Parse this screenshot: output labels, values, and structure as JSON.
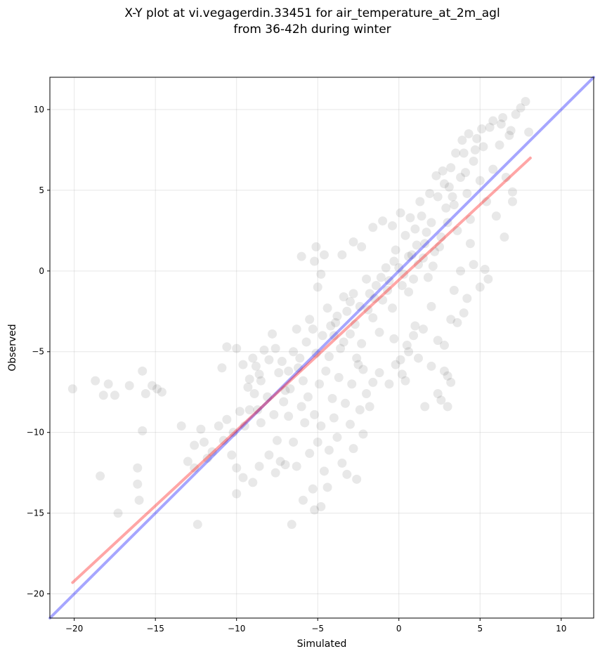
{
  "chart_data": {
    "type": "scatter",
    "title": "X-Y plot at vi.vegagerdin.33451 for air_temperature_at_2m_agl",
    "subtitle": "from 36-42h during winter",
    "xlabel": "Simulated",
    "ylabel": "Observed",
    "xlim": [
      -21.5,
      12
    ],
    "ylim": [
      -21.5,
      12
    ],
    "xticks": [
      -20,
      -15,
      -10,
      -5,
      0,
      5,
      10
    ],
    "yticks": [
      -20,
      -15,
      -10,
      -5,
      0,
      5,
      10
    ],
    "grid": true,
    "point_color": "#000000",
    "points": [
      [
        -20.1,
        -7.3
      ],
      [
        -18.7,
        -6.8
      ],
      [
        -18.2,
        -7.7
      ],
      [
        -17.9,
        -7.0
      ],
      [
        -17.5,
        -7.7
      ],
      [
        -16.6,
        -7.1
      ],
      [
        -15.8,
        -6.2
      ],
      [
        -15.6,
        -7.6
      ],
      [
        -15.2,
        -7.1
      ],
      [
        -14.9,
        -7.3
      ],
      [
        -14.6,
        -7.5
      ],
      [
        -15.8,
        -9.9
      ],
      [
        -18.4,
        -12.7
      ],
      [
        -16.1,
        -12.2
      ],
      [
        -16.1,
        -13.2
      ],
      [
        -16.0,
        -14.2
      ],
      [
        -17.3,
        -15.0
      ],
      [
        -12.4,
        -15.7
      ],
      [
        -13.4,
        -9.6
      ],
      [
        -13.0,
        -11.8
      ],
      [
        -12.6,
        -10.8
      ],
      [
        -12.2,
        -9.8
      ],
      [
        -12.0,
        -10.6
      ],
      [
        -11.8,
        -11.6
      ],
      [
        -11.5,
        -11.2
      ],
      [
        -11.1,
        -9.6
      ],
      [
        -10.8,
        -10.5
      ],
      [
        -10.6,
        -9.2
      ],
      [
        -10.2,
        -10.0
      ],
      [
        -9.8,
        -8.7
      ],
      [
        -9.5,
        -9.6
      ],
      [
        -9.2,
        -8.6
      ],
      [
        -8.9,
        -7.6
      ],
      [
        -8.7,
        -8.6
      ],
      [
        -8.5,
        -9.4
      ],
      [
        -10.3,
        -11.4
      ],
      [
        -10.0,
        -12.2
      ],
      [
        -9.6,
        -12.8
      ],
      [
        -9.0,
        -13.1
      ],
      [
        -8.6,
        -12.1
      ],
      [
        -10.0,
        -13.8
      ],
      [
        -12.6,
        -12.2
      ],
      [
        -10.6,
        -4.7
      ],
      [
        -10.0,
        -4.8
      ],
      [
        -10.9,
        -6.0
      ],
      [
        -9.6,
        -5.8
      ],
      [
        -9.2,
        -6.7
      ],
      [
        -9.0,
        -5.4
      ],
      [
        -8.8,
        -5.9
      ],
      [
        -8.5,
        -6.8
      ],
      [
        -8.3,
        -4.9
      ],
      [
        -8.0,
        -5.5
      ],
      [
        -7.8,
        -3.9
      ],
      [
        -7.6,
        -4.8
      ],
      [
        -7.4,
        -6.3
      ],
      [
        -7.2,
        -5.6
      ],
      [
        -7.0,
        -7.4
      ],
      [
        -6.8,
        -6.2
      ],
      [
        -6.5,
        -5.0
      ],
      [
        -6.3,
        -3.6
      ],
      [
        -6.1,
        -5.4
      ],
      [
        -5.9,
        -6.8
      ],
      [
        -5.7,
        -4.4
      ],
      [
        -5.5,
        -3.0
      ],
      [
        -5.3,
        -3.6
      ],
      [
        -5.1,
        -5.1
      ],
      [
        -5.0,
        -1.0
      ],
      [
        -4.8,
        -0.2
      ],
      [
        -5.2,
        0.6
      ],
      [
        -6.0,
        0.9
      ],
      [
        -4.6,
        1.0
      ],
      [
        -5.1,
        1.5
      ],
      [
        -4.4,
        -2.3
      ],
      [
        -4.2,
        -3.4
      ],
      [
        -4.0,
        -4.0
      ],
      [
        -3.8,
        -2.8
      ],
      [
        -3.6,
        -4.8
      ],
      [
        -3.4,
        -1.6
      ],
      [
        -3.2,
        -2.5
      ],
      [
        -3.0,
        -3.9
      ],
      [
        -2.8,
        -1.4
      ],
      [
        -2.6,
        -5.4
      ],
      [
        -2.4,
        -2.2
      ],
      [
        -2.2,
        -6.1
      ],
      [
        -2.0,
        -0.5
      ],
      [
        -1.8,
        -1.4
      ],
      [
        -1.6,
        -2.9
      ],
      [
        -1.4,
        -0.9
      ],
      [
        -1.2,
        -3.8
      ],
      [
        -1.0,
        -1.8
      ],
      [
        -0.8,
        0.2
      ],
      [
        -0.6,
        -0.6
      ],
      [
        -0.4,
        -2.3
      ],
      [
        -0.2,
        1.3
      ],
      [
        0.0,
        0.2
      ],
      [
        0.2,
        -0.9
      ],
      [
        0.4,
        2.2
      ],
      [
        0.6,
        -1.3
      ],
      [
        0.8,
        1.0
      ],
      [
        1.0,
        2.6
      ],
      [
        1.2,
        0.4
      ],
      [
        1.4,
        3.4
      ],
      [
        1.6,
        1.7
      ],
      [
        1.8,
        -0.4
      ],
      [
        2.0,
        3.0
      ],
      [
        2.2,
        1.2
      ],
      [
        2.4,
        4.6
      ],
      [
        2.6,
        2.1
      ],
      [
        2.8,
        5.4
      ],
      [
        3.0,
        3.0
      ],
      [
        3.2,
        6.4
      ],
      [
        3.4,
        4.1
      ],
      [
        3.6,
        2.5
      ],
      [
        3.8,
        5.8
      ],
      [
        4.0,
        7.3
      ],
      [
        4.2,
        4.8
      ],
      [
        4.4,
        3.2
      ],
      [
        4.6,
        6.8
      ],
      [
        4.8,
        8.2
      ],
      [
        5.0,
        5.6
      ],
      [
        5.2,
        7.7
      ],
      [
        5.4,
        4.3
      ],
      [
        5.6,
        8.9
      ],
      [
        5.8,
        6.3
      ],
      [
        6.0,
        3.4
      ],
      [
        6.2,
        7.8
      ],
      [
        6.4,
        9.5
      ],
      [
        6.6,
        5.8
      ],
      [
        6.8,
        8.4
      ],
      [
        7.0,
        4.9
      ],
      [
        7.2,
        9.7
      ],
      [
        7.5,
        10.1
      ],
      [
        7.8,
        10.5
      ],
      [
        8.0,
        8.6
      ],
      [
        7.0,
        4.3
      ],
      [
        6.5,
        2.1
      ],
      [
        5.5,
        -0.5
      ],
      [
        5.3,
        0.1
      ],
      [
        -7.5,
        -10.5
      ],
      [
        -7.3,
        -11.8
      ],
      [
        -7.0,
        -12.0
      ],
      [
        -6.8,
        -9.0
      ],
      [
        -6.5,
        -10.6
      ],
      [
        -6.3,
        -12.1
      ],
      [
        -6.0,
        -8.4
      ],
      [
        -5.8,
        -9.4
      ],
      [
        -5.5,
        -11.3
      ],
      [
        -5.3,
        -13.5
      ],
      [
        -5.0,
        -10.6
      ],
      [
        -4.8,
        -9.6
      ],
      [
        -4.6,
        -12.4
      ],
      [
        -4.3,
        -11.1
      ],
      [
        -4.0,
        -9.1
      ],
      [
        -3.8,
        -10.3
      ],
      [
        -3.5,
        -11.9
      ],
      [
        -3.2,
        -12.6
      ],
      [
        -3.0,
        -9.5
      ],
      [
        -2.8,
        -11.0
      ],
      [
        -2.6,
        -12.9
      ],
      [
        -2.4,
        -8.6
      ],
      [
        -2.2,
        -10.1
      ],
      [
        -5.9,
        -14.2
      ],
      [
        -5.2,
        -14.8
      ],
      [
        -4.8,
        -14.6
      ],
      [
        -4.4,
        -13.4
      ],
      [
        -6.6,
        -15.7
      ],
      [
        -8.0,
        -11.4
      ],
      [
        -7.6,
        -12.5
      ],
      [
        -2.0,
        -7.6
      ],
      [
        -1.8,
        -8.4
      ],
      [
        -1.6,
        -6.9
      ],
      [
        -1.2,
        -6.3
      ],
      [
        -0.6,
        -7.0
      ],
      [
        -0.2,
        -5.8
      ],
      [
        0.2,
        -6.4
      ],
      [
        0.4,
        -6.8
      ],
      [
        0.6,
        -5.0
      ],
      [
        1.2,
        -5.4
      ],
      [
        1.6,
        -8.4
      ],
      [
        2.0,
        -5.9
      ],
      [
        2.4,
        -7.6
      ],
      [
        2.8,
        -6.2
      ],
      [
        3.0,
        -8.4
      ],
      [
        3.2,
        -6.9
      ],
      [
        2.6,
        -8.0
      ],
      [
        3.0,
        -6.5
      ],
      [
        1.0,
        -3.4
      ],
      [
        1.5,
        -3.6
      ],
      [
        2.0,
        -2.2
      ],
      [
        2.4,
        -4.3
      ],
      [
        2.8,
        -4.6
      ],
      [
        3.2,
        -3.0
      ],
      [
        3.6,
        -3.2
      ],
      [
        4.0,
        -2.6
      ],
      [
        4.2,
        -1.7
      ],
      [
        4.6,
        0.4
      ],
      [
        5.0,
        -1.0
      ],
      [
        4.4,
        1.7
      ],
      [
        3.8,
        0.0
      ],
      [
        3.4,
        -1.2
      ],
      [
        0.9,
        -4.0
      ],
      [
        0.5,
        -4.6
      ],
      [
        0.1,
        -5.5
      ],
      [
        -0.3,
        -4.2
      ],
      [
        -3.5,
        1.0
      ],
      [
        -2.8,
        1.8
      ],
      [
        -2.3,
        1.5
      ],
      [
        -1.6,
        2.7
      ],
      [
        -1.0,
        3.1
      ],
      [
        -0.4,
        2.8
      ],
      [
        0.1,
        3.6
      ],
      [
        0.7,
        3.3
      ],
      [
        1.3,
        4.3
      ],
      [
        1.9,
        4.8
      ],
      [
        2.3,
        5.9
      ],
      [
        2.7,
        6.2
      ],
      [
        3.1,
        5.2
      ],
      [
        3.5,
        7.3
      ],
      [
        3.9,
        8.1
      ],
      [
        4.3,
        8.5
      ],
      [
        5.1,
        8.8
      ],
      [
        5.8,
        9.3
      ],
      [
        6.3,
        9.1
      ],
      [
        6.9,
        8.7
      ],
      [
        4.7,
        7.5
      ],
      [
        4.1,
        6.1
      ],
      [
        3.3,
        4.6
      ],
      [
        2.9,
        3.9
      ],
      [
        -9.3,
        -7.2
      ],
      [
        -8.6,
        -6.4
      ],
      [
        -8.1,
        -7.8
      ],
      [
        -7.7,
        -8.9
      ],
      [
        -7.1,
        -8.1
      ],
      [
        -6.7,
        -7.3
      ],
      [
        -6.2,
        -6.0
      ],
      [
        -5.6,
        -7.8
      ],
      [
        -5.2,
        -8.9
      ],
      [
        -4.9,
        -7.0
      ],
      [
        -4.5,
        -6.2
      ],
      [
        -4.1,
        -7.9
      ],
      [
        -3.7,
        -6.6
      ],
      [
        -3.3,
        -8.2
      ],
      [
        -2.9,
        -7.0
      ],
      [
        -2.5,
        -5.8
      ],
      [
        -4.7,
        -4.0
      ],
      [
        -4.3,
        -5.3
      ],
      [
        -3.9,
        -3.2
      ],
      [
        -3.4,
        -4.4
      ],
      [
        -3.0,
        -1.9
      ],
      [
        -2.7,
        -3.3
      ],
      [
        -2.3,
        -4.5
      ],
      [
        -1.9,
        -2.4
      ],
      [
        -1.5,
        -1.7
      ],
      [
        -1.1,
        -0.4
      ],
      [
        -0.7,
        -1.2
      ],
      [
        -0.3,
        0.6
      ],
      [
        0.3,
        -0.2
      ],
      [
        0.6,
        0.9
      ],
      [
        0.9,
        -0.5
      ],
      [
        1.1,
        1.6
      ],
      [
        1.5,
        0.8
      ],
      [
        1.7,
        2.4
      ],
      [
        2.1,
        0.3
      ],
      [
        2.5,
        1.5
      ]
    ],
    "lines": [
      {
        "color": "#0000ff",
        "x": [
          -21.5,
          12
        ],
        "y": [
          -21.5,
          12
        ]
      },
      {
        "color": "#ff0000",
        "x": [
          -20.1,
          8.1
        ],
        "y": [
          -19.3,
          7.0
        ]
      }
    ]
  }
}
